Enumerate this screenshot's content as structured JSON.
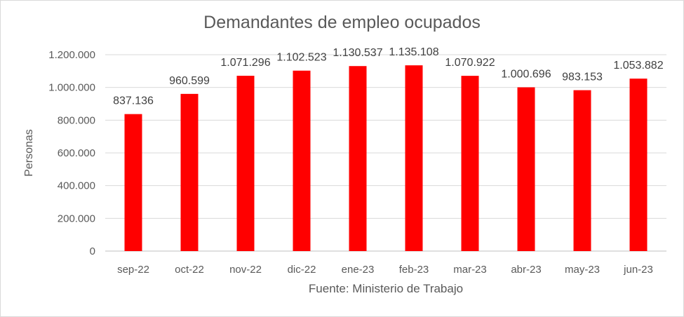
{
  "chart_data": {
    "type": "bar",
    "title": "Demandantes de empleo ocupados",
    "ylabel": "Personas",
    "xlabel": "Fuente: Ministerio de Trabajo",
    "ylim": [
      0,
      1200000
    ],
    "yticks": [
      0,
      200000,
      400000,
      600000,
      800000,
      1000000,
      1200000
    ],
    "ytick_labels": [
      "0",
      "200.000",
      "400.000",
      "600.000",
      "800.000",
      "1.000.000",
      "1.200.000"
    ],
    "categories": [
      "sep-22",
      "oct-22",
      "nov-22",
      "dic-22",
      "ene-23",
      "feb-23",
      "mar-23",
      "abr-23",
      "may-23",
      "jun-23"
    ],
    "values": [
      837136,
      960599,
      1071296,
      1102523,
      1130537,
      1135108,
      1070922,
      1000696,
      983153,
      1053882
    ],
    "value_labels": [
      "837.136",
      "960.599",
      "1.071.296",
      "1.102.523",
      "1.130.537",
      "1.135.108",
      "1.070.922",
      "1.000.696",
      "983.153",
      "1.053.882"
    ],
    "bar_color": "#ff0000",
    "gridlines": true
  }
}
